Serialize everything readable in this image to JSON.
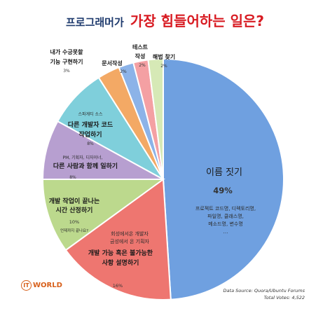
{
  "title": {
    "part1": "프로그래머가",
    "part2": "가장 힘들어하는 일은?"
  },
  "chart_data": {
    "type": "pie",
    "title": "프로그래머가 가장 힘들어하는 일은?",
    "slices": [
      {
        "label": "이름 짓기",
        "value": 49,
        "value_text": "49%",
        "description": [
          "프로젝트 코드명, 디렉토리명,",
          "파일명, 클래스명,",
          "메소드명, 변수명",
          "…"
        ],
        "color": "#6fa0e0"
      },
      {
        "label": "개발 가능 혹은 불가능한 사항 설명하기",
        "value": 16,
        "value_text": "16%",
        "description": [
          "회성에서온 개발자",
          "금성에서 온 기획자"
        ],
        "color": "#ee7670"
      },
      {
        "label": "개발 작업이 끝나는 시간 산정하기",
        "value": 10,
        "value_text": "10%",
        "description": [
          "언제까지 끝나요?"
        ],
        "color": "#bcd98d"
      },
      {
        "label": "다른 사람과 함께 일하기",
        "value": 8,
        "value_text": "8%",
        "description": [
          "PM, 기획자, 디자이너,"
        ],
        "color": "#b79fd0"
      },
      {
        "label": "다른 개발자 코드 작업하기",
        "value": 8,
        "value_text": "8%",
        "description": [
          "스파게티 소스"
        ],
        "color": "#7fcfdb"
      },
      {
        "label": "내가 수긍못할 기능 구현하기",
        "value": 3,
        "value_text": "3%",
        "description": [],
        "color": "#f3a965"
      },
      {
        "label": "문서작성",
        "value": 2,
        "value_text": "2%",
        "description": [],
        "color": "#8cb3e8"
      },
      {
        "label": "테스트 작성",
        "value": 2,
        "value_text": "2%",
        "description": [],
        "color": "#f4a0a3"
      },
      {
        "label": "해법 찾기",
        "value": 2,
        "value_text": "2%",
        "description": [],
        "color": "#d6e9b6"
      }
    ]
  },
  "footer": {
    "source": "Data Source: Quora/Ubuntu Forums",
    "total_votes": "Total Votes: 4,522",
    "logo_mark": "IT",
    "logo_text": "WORLD"
  }
}
